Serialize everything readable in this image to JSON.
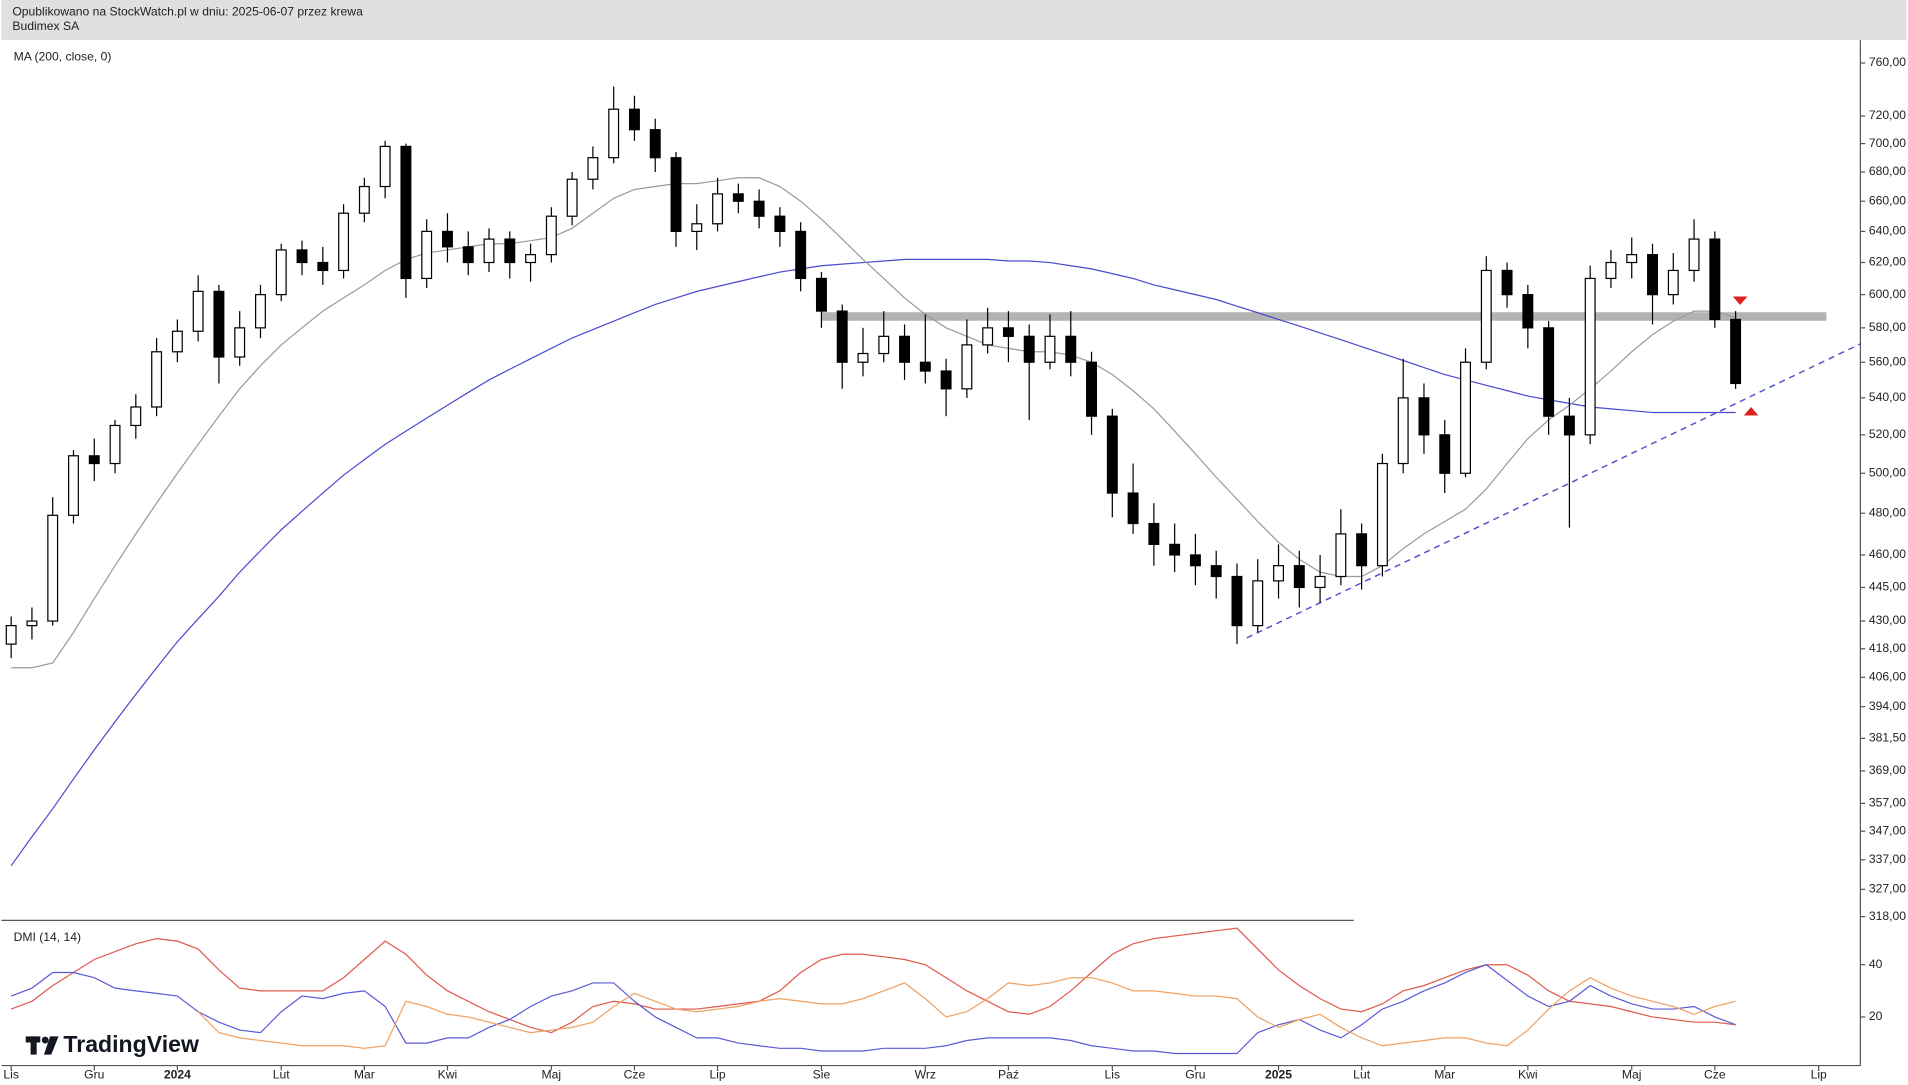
{
  "header": {
    "published": "Opublikowano na StockWatch.pl w dniu: 2025-06-07 przez krewa",
    "symbol": "Budimex SA"
  },
  "logo": "TradingView",
  "chart_data": [
    {
      "type": "candlestick",
      "log_scale": true,
      "up_color": "#ffffff",
      "down_color": "#000000",
      "categories": [
        "Lis",
        null,
        null,
        null,
        "Gru",
        null,
        null,
        null,
        "2024",
        null,
        null,
        null,
        null,
        "Lut",
        null,
        null,
        null,
        "Mar",
        null,
        null,
        null,
        "Kwi",
        null,
        null,
        null,
        null,
        "Maj",
        null,
        null,
        null,
        "Cze",
        null,
        null,
        null,
        "Lip",
        null,
        null,
        null,
        null,
        "Sie",
        null,
        null,
        null,
        null,
        "Wrz",
        null,
        null,
        null,
        "Paź",
        null,
        null,
        null,
        null,
        "Lis",
        null,
        null,
        null,
        "Gru",
        null,
        null,
        null,
        "2025",
        null,
        null,
        null,
        "Lut",
        null,
        null,
        null,
        "Mar",
        null,
        null,
        null,
        "Kwi",
        null,
        null,
        null,
        null,
        "Maj",
        null,
        null,
        null,
        "Cze",
        null,
        null,
        null,
        null,
        "Lip"
      ],
      "open": [
        420,
        428,
        430,
        479,
        509,
        505,
        525,
        535,
        566,
        578,
        602,
        563,
        580,
        600,
        628,
        620,
        615,
        652,
        670,
        698,
        610,
        640,
        630,
        620,
        635,
        620,
        625,
        650,
        675,
        690,
        725,
        710,
        690,
        640,
        645,
        665,
        660,
        650,
        640,
        610,
        590,
        560,
        565,
        575,
        560,
        555,
        545,
        570,
        580,
        575,
        560,
        575,
        560,
        530,
        490,
        475,
        465,
        460,
        455,
        450,
        428,
        448,
        455,
        445,
        450,
        470,
        455,
        505,
        540,
        520,
        500,
        560,
        615,
        600,
        580,
        530,
        520,
        610,
        620,
        625,
        600,
        615,
        635,
        585,
        null,
        null,
        null,
        null
      ],
      "high": [
        432,
        436,
        488,
        512,
        518,
        528,
        542,
        574,
        585,
        612,
        606,
        590,
        606,
        632,
        634,
        630,
        658,
        676,
        702,
        700,
        648,
        652,
        640,
        642,
        640,
        632,
        656,
        680,
        698,
        742,
        735,
        718,
        694,
        658,
        676,
        672,
        668,
        656,
        646,
        614,
        594,
        580,
        590,
        582,
        588,
        562,
        585,
        592,
        590,
        582,
        588,
        590,
        566,
        534,
        505,
        485,
        475,
        470,
        462,
        456,
        458,
        465,
        462,
        460,
        482,
        475,
        510,
        562,
        548,
        528,
        568,
        624,
        620,
        606,
        584,
        540,
        618,
        628,
        636,
        632,
        626,
        648,
        640,
        590,
        null,
        null,
        null,
        null
      ],
      "low": [
        414,
        422,
        428,
        475,
        496,
        500,
        518,
        530,
        560,
        572,
        548,
        558,
        574,
        596,
        612,
        606,
        610,
        646,
        662,
        598,
        604,
        620,
        612,
        614,
        610,
        608,
        620,
        644,
        668,
        686,
        702,
        680,
        630,
        628,
        640,
        652,
        642,
        630,
        602,
        580,
        545,
        552,
        560,
        550,
        548,
        530,
        540,
        565,
        560,
        528,
        556,
        552,
        520,
        478,
        470,
        455,
        452,
        446,
        440,
        420,
        425,
        440,
        436,
        438,
        446,
        444,
        450,
        500,
        510,
        490,
        498,
        556,
        592,
        568,
        520,
        473,
        515,
        604,
        610,
        582,
        594,
        608,
        580,
        545,
        null,
        null,
        null,
        null
      ],
      "close": [
        428,
        430,
        479,
        509,
        505,
        525,
        535,
        566,
        578,
        602,
        563,
        580,
        600,
        628,
        620,
        615,
        652,
        670,
        698,
        610,
        640,
        630,
        620,
        635,
        620,
        625,
        650,
        675,
        690,
        725,
        710,
        690,
        640,
        645,
        665,
        660,
        650,
        640,
        610,
        590,
        560,
        565,
        575,
        560,
        555,
        545,
        570,
        580,
        575,
        560,
        575,
        560,
        530,
        490,
        475,
        465,
        460,
        455,
        450,
        428,
        448,
        455,
        445,
        450,
        470,
        455,
        505,
        540,
        520,
        500,
        560,
        615,
        600,
        580,
        530,
        520,
        610,
        620,
        625,
        600,
        615,
        635,
        585,
        548,
        null,
        null,
        null,
        null
      ],
      "series": [
        {
          "name": "MA (200, close, 0)",
          "color": "#4a4ad0",
          "values": [
            335,
            345,
            355,
            366,
            377,
            388,
            399,
            410,
            421,
            431,
            441,
            452,
            462,
            472,
            481,
            490,
            499,
            507,
            515,
            522,
            529,
            536,
            543,
            550,
            556,
            562,
            568,
            574,
            579,
            584,
            589,
            594,
            598,
            602,
            605,
            608,
            611,
            614,
            616,
            618,
            619,
            620,
            621,
            622,
            622,
            622,
            622,
            622,
            621,
            621,
            620,
            618,
            616,
            613,
            610,
            606,
            603,
            600,
            597,
            593,
            589,
            585,
            581,
            577,
            573,
            569,
            565,
            561,
            557,
            553,
            550,
            547,
            544,
            541,
            539,
            537,
            535,
            534,
            533,
            532,
            532,
            532,
            532,
            532,
            null,
            null,
            null,
            null
          ]
        },
        {
          "color": "#9a9a9a",
          "values": [
            410,
            410,
            412,
            425,
            440,
            455,
            470,
            485,
            500,
            515,
            530,
            545,
            558,
            570,
            580,
            590,
            598,
            606,
            615,
            622,
            626,
            628,
            630,
            632,
            632,
            634,
            636,
            642,
            652,
            662,
            668,
            670,
            672,
            672,
            674,
            676,
            676,
            670,
            660,
            648,
            635,
            622,
            610,
            598,
            588,
            580,
            575,
            570,
            568,
            566,
            566,
            564,
            560,
            553,
            544,
            534,
            522,
            510,
            498,
            487,
            476,
            466,
            458,
            452,
            450,
            450,
            455,
            463,
            470,
            476,
            482,
            492,
            505,
            518,
            528,
            536,
            545,
            555,
            566,
            576,
            584,
            590,
            590,
            586,
            null,
            null,
            null,
            null
          ]
        }
      ],
      "ylim": [
        317,
        778
      ],
      "yticks": [
        {
          "value": 760,
          "label": "760,00"
        },
        {
          "value": 720,
          "label": "720,00"
        },
        {
          "value": 700,
          "label": "700,00"
        },
        {
          "value": 680,
          "label": "680,00"
        },
        {
          "value": 660,
          "label": "660,00"
        },
        {
          "value": 640,
          "label": "640,00"
        },
        {
          "value": 620,
          "label": "620,00"
        },
        {
          "value": 600,
          "label": "600,00"
        },
        {
          "value": 580,
          "label": "580,00"
        },
        {
          "value": 560,
          "label": "560,00"
        },
        {
          "value": 540,
          "label": "540,00"
        },
        {
          "value": 520,
          "label": "520,00"
        },
        {
          "value": 500,
          "label": "500,00"
        },
        {
          "value": 480,
          "label": "480,00"
        },
        {
          "value": 460,
          "label": "460,00"
        },
        {
          "value": 445,
          "label": "445,00"
        },
        {
          "value": 430,
          "label": "430,00"
        },
        {
          "value": 418,
          "label": "418,00"
        },
        {
          "value": 406,
          "label": "406,00"
        },
        {
          "value": 394,
          "label": "394,00"
        },
        {
          "value": 381.5,
          "label": "381,50"
        },
        {
          "value": 369,
          "label": "369,00"
        },
        {
          "value": 357,
          "label": "357,00"
        },
        {
          "value": 347,
          "label": "347,00"
        },
        {
          "value": 337,
          "label": "337,00"
        },
        {
          "value": 327,
          "label": "327,00"
        },
        {
          "value": 318,
          "label": "318,00"
        }
      ]
    },
    {
      "type": "line",
      "indicator_label": "DMI (14, 14)",
      "series": [
        {
          "color": "#e05a4f",
          "values": [
            23,
            26,
            32,
            37,
            42,
            45,
            48,
            50,
            49,
            46,
            38,
            31,
            30,
            30,
            30,
            30,
            35,
            42,
            49,
            44,
            36,
            30,
            26,
            22,
            19,
            16,
            14,
            18,
            24,
            26,
            25,
            23,
            23,
            23,
            24,
            25,
            26,
            30,
            37,
            42,
            44,
            44,
            43,
            42,
            40,
            35,
            30,
            26,
            22,
            21,
            24,
            30,
            37,
            44,
            48,
            50,
            51,
            52,
            53,
            54,
            46,
            38,
            32,
            27,
            23,
            22,
            25,
            30,
            32,
            35,
            38,
            40,
            40,
            36,
            30,
            26,
            25,
            24,
            22,
            20,
            19,
            18,
            18,
            17,
            null,
            null,
            null,
            null
          ]
        },
        {
          "color": "#5b5bd6",
          "values": [
            28,
            31,
            37,
            37,
            35,
            31,
            30,
            29,
            28,
            22,
            18,
            15,
            14,
            22,
            28,
            27,
            29,
            30,
            24,
            10,
            10,
            12,
            12,
            16,
            19,
            24,
            28,
            30,
            33,
            33,
            26,
            20,
            16,
            12,
            12,
            10,
            9,
            8,
            8,
            7,
            7,
            7,
            8,
            8,
            8,
            9,
            11,
            12,
            12,
            12,
            12,
            11,
            9,
            8,
            7,
            7,
            6,
            6,
            6,
            6,
            14,
            17,
            19,
            15,
            12,
            17,
            23,
            26,
            30,
            33,
            37,
            40,
            34,
            28,
            24,
            26,
            32,
            28,
            25,
            23,
            23,
            24,
            20,
            17,
            null,
            null,
            null,
            null
          ]
        },
        {
          "color": "#f0a060",
          "values": [
            null,
            null,
            null,
            null,
            null,
            null,
            null,
            null,
            null,
            22,
            14,
            12,
            11,
            10,
            9,
            9,
            9,
            8,
            9,
            26,
            24,
            21,
            20,
            18,
            16,
            14,
            15,
            16,
            18,
            24,
            29,
            26,
            23,
            22,
            23,
            24,
            26,
            27,
            26,
            25,
            25,
            27,
            30,
            33,
            27,
            20,
            22,
            27,
            33,
            32,
            33,
            35,
            35,
            33,
            30,
            30,
            29,
            28,
            28,
            27,
            20,
            16,
            19,
            21,
            16,
            12,
            9,
            10,
            11,
            12,
            12,
            10,
            9,
            15,
            23,
            30,
            35,
            31,
            28,
            26,
            24,
            21,
            24,
            26,
            null,
            null,
            null,
            null
          ]
        }
      ],
      "ylim": [
        1.4,
        55.8
      ],
      "yticks": [
        40,
        20
      ]
    }
  ]
}
